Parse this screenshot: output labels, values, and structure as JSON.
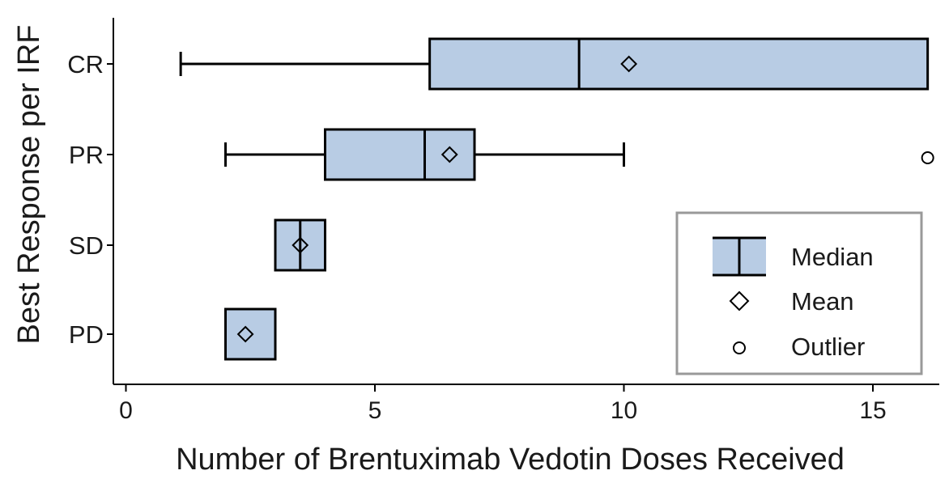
{
  "chart_data": {
    "type": "boxplot",
    "orientation": "horizontal",
    "xlabel": "Number of Brentuximab Vedotin Doses Received",
    "ylabel": "Best Response per IRF",
    "xlim": [
      -0.4,
      16.2
    ],
    "xticks": [
      0,
      5,
      10,
      15
    ],
    "grid": false,
    "box_color": "#b8cce4",
    "edge_color": "#000000",
    "categories": [
      "CR",
      "PR",
      "SD",
      "PD"
    ],
    "boxes": [
      {
        "category": "CR",
        "whisker_low": 1.1,
        "q1": 6.1,
        "median": 9.1,
        "q3": 16.1,
        "whisker_high": 16.1,
        "mean": 10.1,
        "outliers": []
      },
      {
        "category": "PR",
        "whisker_low": 2.0,
        "q1": 4.0,
        "median": 6.0,
        "q3": 7.0,
        "whisker_high": 10.0,
        "mean": 6.5,
        "outliers": [
          16.1
        ]
      },
      {
        "category": "SD",
        "whisker_low": 3.0,
        "q1": 3.0,
        "median": 3.5,
        "q3": 4.0,
        "whisker_high": 4.0,
        "mean": 3.5,
        "outliers": []
      },
      {
        "category": "PD",
        "whisker_low": 2.0,
        "q1": 2.0,
        "median": 2.0,
        "q3": 3.0,
        "whisker_high": 3.0,
        "mean": 2.4,
        "outliers": []
      }
    ],
    "legend": {
      "placement": "bottom-right",
      "entries": [
        {
          "symbol": "box-median",
          "label": "Median"
        },
        {
          "symbol": "diamond",
          "label": "Mean"
        },
        {
          "symbol": "circle",
          "label": "Outlier"
        }
      ]
    }
  }
}
